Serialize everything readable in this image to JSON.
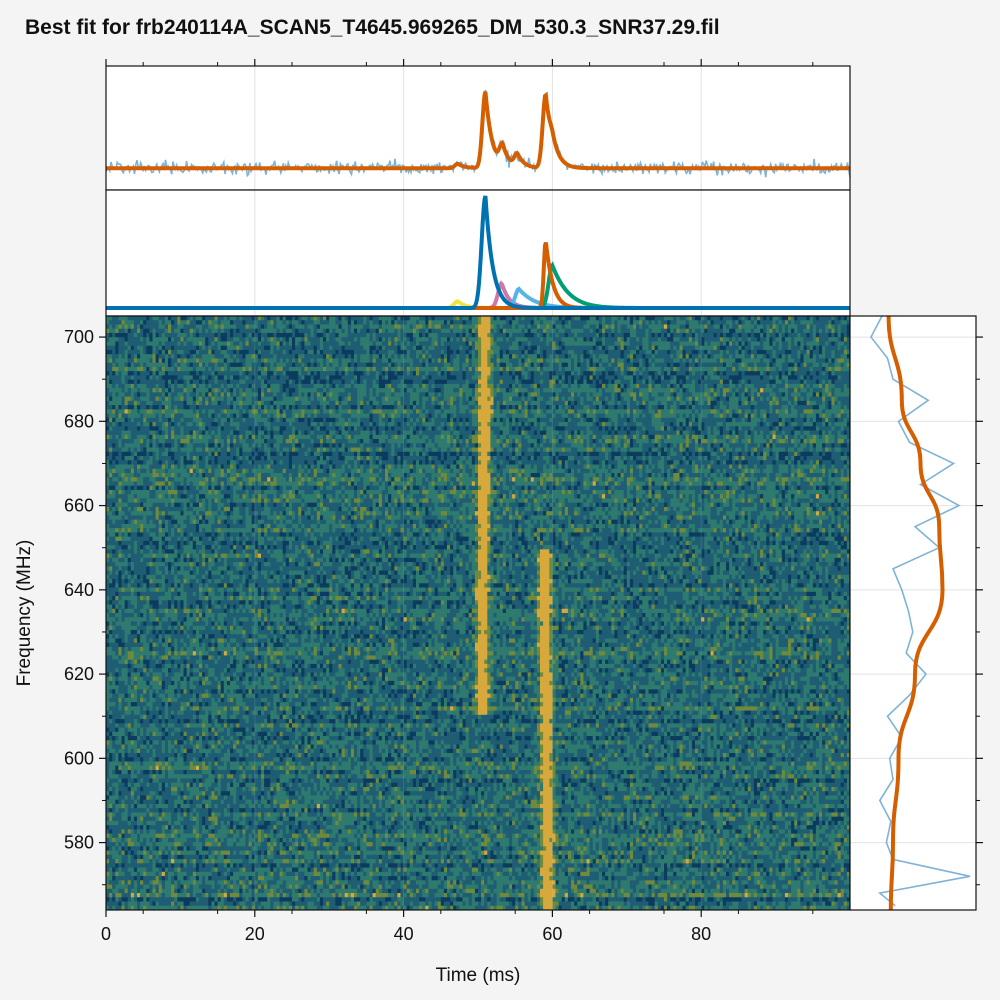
{
  "chart_data": {
    "type": "heatmap",
    "title": "Best fit for frb240114A_SCAN5_T4645.969265_DM_530.3_SNR37.29.fil",
    "xlabel": "Time (ms)",
    "ylabel": "Frequency (MHz)",
    "xlim": [
      0,
      100
    ],
    "ylim": [
      564,
      705
    ],
    "x_ticks": [
      0,
      20,
      40,
      60,
      80
    ],
    "y_ticks": [
      580,
      600,
      620,
      640,
      660,
      680,
      700
    ],
    "grid": true,
    "colormap": [
      "#0b3b5e",
      "#1e5d73",
      "#2e7a6e",
      "#6f8a3c",
      "#d7a83c"
    ],
    "panels": {
      "timeseries": {
        "data_color": "#7fb3d5",
        "model_color": "#d55e00",
        "baseline": 0.02,
        "noise_sigma": 0.035,
        "peaks": [
          {
            "t": 51.0,
            "amp": 0.85
          },
          {
            "t": 53.3,
            "amp": 0.22
          },
          {
            "t": 55.3,
            "amp": 0.14
          },
          {
            "t": 59.1,
            "amp": 0.82
          },
          {
            "t": 60.0,
            "amp": 0.12
          },
          {
            "t": 47.3,
            "amp": 0.05
          }
        ]
      },
      "components": {
        "series": [
          {
            "color": "#0072b2",
            "t": 51.0,
            "amp": 1.0
          },
          {
            "color": "#cc79a7",
            "t": 53.2,
            "amp": 0.22
          },
          {
            "color": "#56b4e9",
            "t": 55.5,
            "amp": 0.17
          },
          {
            "color": "#d55e00",
            "t": 59.1,
            "amp": 0.6
          },
          {
            "color": "#009e73",
            "t": 60.0,
            "amp": 0.38
          },
          {
            "color": "#f0e442",
            "t": 47.3,
            "amp": 0.06
          }
        ]
      },
      "spectrum": {
        "data_color": "#7fb3d5",
        "model_color": "#d55e00",
        "data": [
          [
            565,
            0.32
          ],
          [
            568,
            0.18
          ],
          [
            572,
            1.0
          ],
          [
            576,
            0.3
          ],
          [
            580,
            0.24
          ],
          [
            585,
            0.28
          ],
          [
            590,
            0.18
          ],
          [
            595,
            0.3
          ],
          [
            600,
            0.27
          ],
          [
            605,
            0.38
          ],
          [
            610,
            0.25
          ],
          [
            615,
            0.45
          ],
          [
            620,
            0.6
          ],
          [
            625,
            0.42
          ],
          [
            630,
            0.48
          ],
          [
            635,
            0.44
          ],
          [
            640,
            0.38
          ],
          [
            645,
            0.3
          ],
          [
            650,
            0.72
          ],
          [
            655,
            0.5
          ],
          [
            660,
            0.9
          ],
          [
            665,
            0.55
          ],
          [
            670,
            0.85
          ],
          [
            675,
            0.45
          ],
          [
            680,
            0.35
          ],
          [
            685,
            0.62
          ],
          [
            690,
            0.3
          ],
          [
            695,
            0.25
          ],
          [
            700,
            0.1
          ],
          [
            705,
            0.2
          ]
        ],
        "model": [
          [
            564,
            0.28
          ],
          [
            580,
            0.3
          ],
          [
            600,
            0.35
          ],
          [
            620,
            0.5
          ],
          [
            640,
            0.75
          ],
          [
            655,
            0.72
          ],
          [
            670,
            0.55
          ],
          [
            685,
            0.38
          ],
          [
            705,
            0.26
          ]
        ]
      }
    }
  }
}
